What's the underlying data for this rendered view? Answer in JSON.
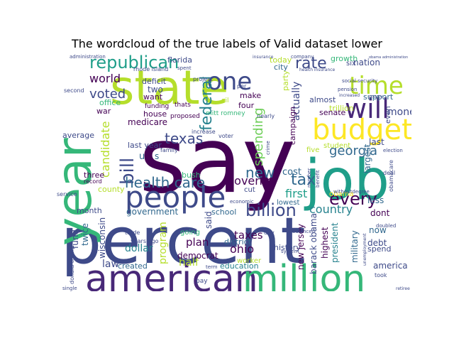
{
  "title": "The wordcloud of the true labels of Valid dataset lower",
  "colors": {
    "dark_purple": "#440154",
    "purple": "#482878",
    "blue_purple": "#3e4a89",
    "blue": "#31688e",
    "teal_blue": "#26828e",
    "teal": "#1f9e89",
    "green": "#35b779",
    "light_green": "#6ece58",
    "yellow_green": "#b5de2b",
    "yellow": "#fde725"
  },
  "words": {
    "say": "say",
    "state": "state",
    "percent": "percent",
    "year": "year",
    "job": "job",
    "american": "american",
    "million": "million",
    "people": "people",
    "budget": "budget",
    "time": "time",
    "will": "will",
    "one": "one",
    "republican": "republican",
    "rate": "rate",
    "tax": "tax",
    "bill": "bill",
    "health_care": "health care",
    "texas": "texas",
    "every": "every",
    "billion": "billion",
    "new": "new",
    "federal": "federal",
    "spending": "spending",
    "georgia": "georgia",
    "governor": "governor",
    "voted": "voted",
    "candidate": "candidate",
    "world": "world",
    "money": "money",
    "country": "country",
    "first": "first",
    "cost": "cost",
    "ohio": "ohio",
    "taxes": "taxes",
    "plan": "plan",
    "half": "half",
    "law": "law",
    "government": "government",
    "dollar": "dollar",
    "program": "program",
    "democrat": "democrat",
    "education": "education",
    "created": "created",
    "fund": "fund",
    "twice": "twice",
    "wisconsin": "wisconsin",
    "school": "school",
    "district": "district",
    "history": "history",
    "new_jersey": "new jersey",
    "barack_obama": "barack obama",
    "highest": "highest",
    "president": "president",
    "military": "military",
    "debt": "debt",
    "spend": "spend",
    "now": "now",
    "america": "america",
    "less": "less",
    "dont": "dont",
    "last": "last",
    "largest": "largest",
    "support": "support",
    "nation": "nation",
    "six": "six",
    "growth": "growth",
    "today": "today",
    "city": "city",
    "actually": "actually",
    "campaign": "campaign",
    "senate": "senate",
    "trillion": "trillion",
    "almost": "almost",
    "party": "party",
    "make": "make",
    "four": "four",
    "deficit": "deficit",
    "two": "two",
    "want": "want",
    "office": "office",
    "war": "war",
    "house": "house",
    "medicare": "medicare",
    "average": "average",
    "last_year": "last year",
    "u": "u",
    "s": "s",
    "three": "three",
    "month": "month",
    "county": "county",
    "bush": "bush",
    "florida": "florida",
    "obama": "obama",
    "student": "student",
    "five": "five",
    "lowest": "lowest",
    "cut": "cut",
    "said": "said",
    "worker": "worker",
    "even": "even",
    "going": "going",
    "pay": "pay",
    "years_ago": "years ago",
    "voter": "voter",
    "increase": "increase",
    "mitt_romney": "mitt romney",
    "proposed": "proposed",
    "funding": "funding",
    "thats": "thats",
    "donald_trump": "donald trump",
    "social_security": "social security",
    "deal": "deal",
    "took": "took",
    "oil": "oil",
    "family": "family",
    "second": "second",
    "record": "record",
    "service": "service",
    "trade": "trade",
    "rhode_island": "rhode island",
    "project": "project",
    "per": "per",
    "nearly": "nearly",
    "day": "day",
    "obamacare": "obamacare",
    "election": "election",
    "company": "company",
    "insurance": "insurance",
    "administration": "administration",
    "doubled": "doubled",
    "single": "single",
    "retiree": "retiree",
    "term": "term",
    "crime": "crime",
    "balanced": "balanced",
    "unemployment": "unemployment",
    "without_degree": "withoutdegree",
    "system": "system",
    "economic": "economic",
    "number": "number",
    "benefit": "benefit",
    "pension": "pension",
    "increased": "increased",
    "many": "many",
    "spent": "spent",
    "health_insurance": "health insurance",
    "obama_administration": "obama administration"
  }
}
